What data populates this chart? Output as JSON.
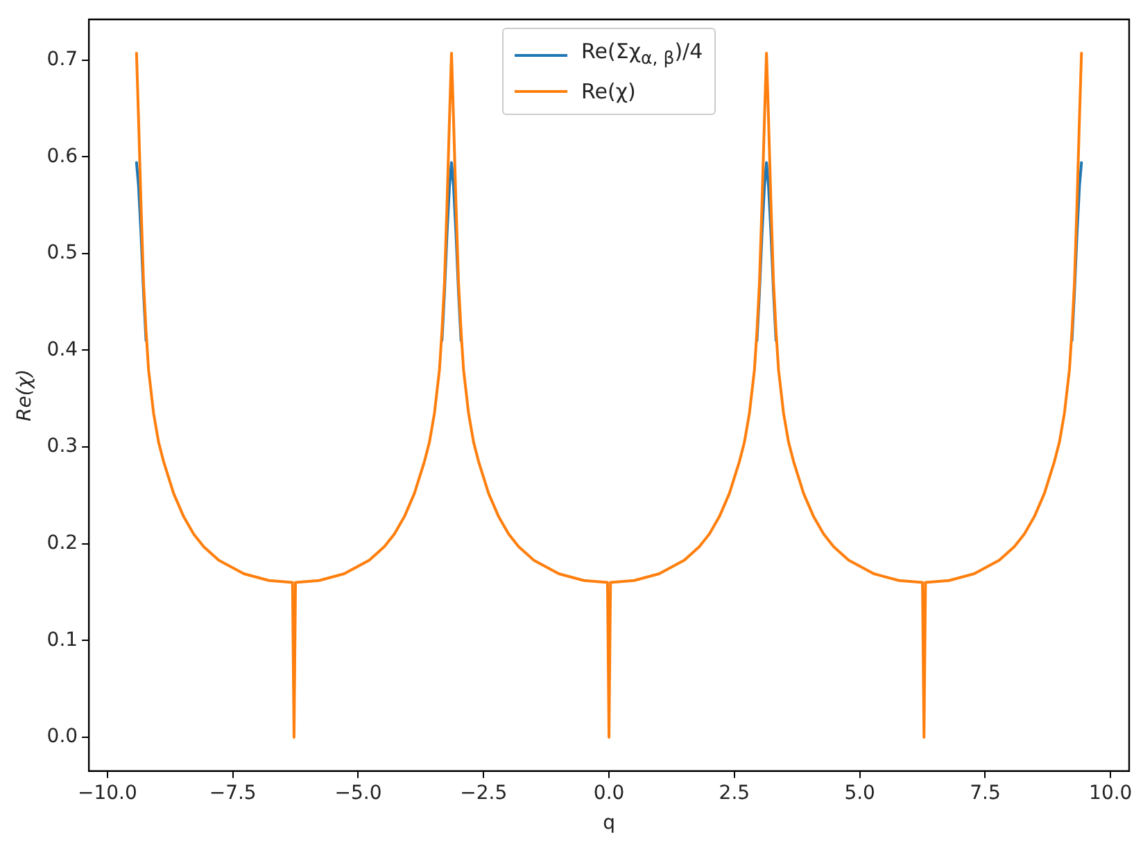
{
  "chart_data": {
    "type": "line",
    "xlabel": "q",
    "ylabel": "Re(χ)",
    "legend": "top",
    "grid": false,
    "marker": "none",
    "line_style": "solid",
    "xlim": [
      -10.37,
      10.37
    ],
    "ylim": [
      -0.035,
      0.742
    ],
    "xticks": [
      {
        "value": -10,
        "label": "−10.0"
      },
      {
        "value": -7.5,
        "label": "−7.5"
      },
      {
        "value": -5,
        "label": "−5.0"
      },
      {
        "value": -2.5,
        "label": "−2.5"
      },
      {
        "value": 0,
        "label": "0.0"
      },
      2.5,
      {
        "value": 5,
        "label": "5.0"
      },
      7.5,
      {
        "value": 10,
        "label": "10.0"
      }
    ],
    "yticks": [
      {
        "value": 0,
        "label": "0.0"
      },
      0.1,
      0.2,
      0.3,
      0.4,
      0.5,
      0.6,
      0.7
    ],
    "x": [
      -9.42,
      -9.38,
      -9.33,
      -9.28,
      -9.23,
      -9.18,
      -9.08,
      -8.98,
      -8.88,
      -8.68,
      -8.48,
      -8.28,
      -8.08,
      -7.78,
      -7.28,
      -6.78,
      -6.31,
      -6.28,
      -6.25,
      -5.78,
      -5.28,
      -4.78,
      -4.48,
      -4.28,
      -4.08,
      -3.88,
      -3.68,
      -3.58,
      -3.48,
      -3.38,
      -3.33,
      -3.28,
      -3.23,
      -3.18,
      -3.14,
      -3.1,
      -3.05,
      -3.0,
      -2.95,
      -2.9,
      -2.8,
      -2.7,
      -2.6,
      -2.4,
      -2.2,
      -2.0,
      -1.8,
      -1.5,
      -1.0,
      -0.5,
      -0.03,
      0,
      0.03,
      0.5,
      1.0,
      1.5,
      1.8,
      2.0,
      2.2,
      2.4,
      2.6,
      2.7,
      2.8,
      2.9,
      2.95,
      3.0,
      3.05,
      3.1,
      3.14,
      3.18,
      3.23,
      3.28,
      3.33,
      3.38,
      3.48,
      3.58,
      3.68,
      3.88,
      4.08,
      4.28,
      4.48,
      4.78,
      5.28,
      5.78,
      6.25,
      6.28,
      6.31,
      6.78,
      7.28,
      7.78,
      8.08,
      8.28,
      8.48,
      8.68,
      8.88,
      8.98,
      9.08,
      9.18,
      9.23,
      9.28,
      9.33,
      9.38,
      9.42
    ],
    "series": [
      {
        "name": "Re(Σχ$_{α, β}$)/4",
        "color": "#1f77b4",
        "values": [
          0.594,
          0.57,
          0.52,
          0.46,
          0.41,
          null,
          null,
          null,
          null,
          null,
          null,
          null,
          null,
          null,
          null,
          null,
          null,
          null,
          null,
          null,
          null,
          null,
          null,
          null,
          null,
          null,
          null,
          null,
          null,
          null,
          0.41,
          0.46,
          0.52,
          0.57,
          0.594,
          0.57,
          0.52,
          0.46,
          0.41,
          null,
          null,
          null,
          null,
          null,
          null,
          null,
          null,
          null,
          null,
          null,
          null,
          null,
          null,
          null,
          null,
          null,
          null,
          null,
          null,
          null,
          null,
          null,
          null,
          null,
          0.41,
          0.46,
          0.52,
          0.57,
          0.594,
          0.57,
          0.52,
          0.46,
          0.41,
          null,
          null,
          null,
          null,
          null,
          null,
          null,
          null,
          null,
          null,
          null,
          null,
          null,
          null,
          null,
          null,
          null,
          null,
          null,
          null,
          null,
          null,
          null,
          null,
          null,
          0.41,
          0.46,
          0.52,
          0.57,
          0.594
        ]
      },
      {
        "name": "Re(χ)",
        "color": "#ff7f0e",
        "values": [
          0.707,
          0.64,
          0.55,
          0.47,
          0.42,
          0.38,
          0.335,
          0.305,
          0.285,
          0.252,
          0.228,
          0.21,
          0.197,
          0.183,
          0.169,
          0.162,
          0.16,
          0,
          0.16,
          0.162,
          0.169,
          0.183,
          0.197,
          0.21,
          0.228,
          0.252,
          0.285,
          0.305,
          0.335,
          0.38,
          0.42,
          0.47,
          0.55,
          0.64,
          0.707,
          0.64,
          0.55,
          0.47,
          0.42,
          0.38,
          0.335,
          0.305,
          0.285,
          0.252,
          0.228,
          0.21,
          0.197,
          0.183,
          0.169,
          0.162,
          0.16,
          0,
          0.16,
          0.162,
          0.169,
          0.183,
          0.197,
          0.21,
          0.228,
          0.252,
          0.285,
          0.305,
          0.335,
          0.38,
          0.42,
          0.47,
          0.55,
          0.64,
          0.707,
          0.64,
          0.55,
          0.47,
          0.42,
          0.38,
          0.335,
          0.305,
          0.285,
          0.252,
          0.228,
          0.21,
          0.197,
          0.183,
          0.169,
          0.162,
          0.16,
          0,
          0.16,
          0.162,
          0.169,
          0.183,
          0.197,
          0.21,
          0.228,
          0.252,
          0.285,
          0.305,
          0.335,
          0.38,
          0.42,
          0.47,
          0.55,
          0.64,
          0.707
        ]
      }
    ]
  }
}
